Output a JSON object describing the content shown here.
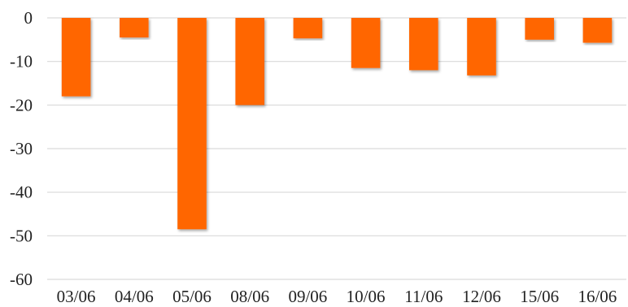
{
  "chart_data": {
    "type": "bar",
    "title": "",
    "xlabel": "",
    "ylabel": "",
    "categories": [
      "03/06",
      "04/06",
      "05/06",
      "08/06",
      "09/06",
      "10/06",
      "11/06",
      "12/06",
      "15/06",
      "16/06"
    ],
    "series": [
      {
        "values": [
          -18,
          -4.5,
          -48.5,
          -20,
          -4.7,
          -11.5,
          -12,
          -13.2,
          -5,
          -5.7
        ],
        "color": "#ff6600"
      }
    ],
    "ylim": [
      -60,
      0
    ],
    "yticks": [
      0,
      -10,
      -20,
      -30,
      -40,
      -50,
      -60
    ],
    "grid": true,
    "legend": "none"
  }
}
